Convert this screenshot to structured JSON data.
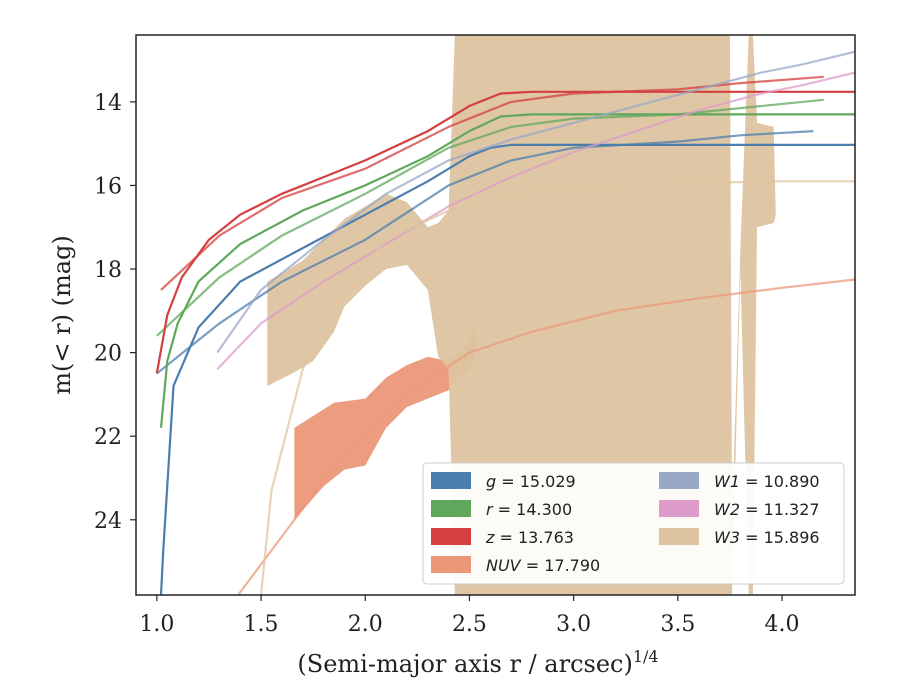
{
  "chart_data": {
    "type": "line",
    "xlabel": "(Semi-major axis r / arcsec)",
    "xlabel_superscript": "1/4",
    "ylabel": "m(< r) (mag)",
    "xlim": [
      0.9,
      4.35
    ],
    "ylim": [
      25.8,
      12.4
    ],
    "y_inverted": true,
    "x_ticks": [
      1.0,
      1.5,
      2.0,
      2.5,
      3.0,
      3.5,
      4.0
    ],
    "x_tick_labels": [
      "1.0",
      "1.5",
      "2.0",
      "2.5",
      "3.0",
      "3.5",
      "4.0"
    ],
    "y_ticks": [
      14,
      16,
      18,
      20,
      22,
      24
    ],
    "y_tick_labels": [
      "14",
      "16",
      "18",
      "20",
      "22",
      "24"
    ],
    "legend_position": "lower-right",
    "legend": [
      {
        "label": "g = 15.029",
        "color": "#4c7ead"
      },
      {
        "label": "r = 14.300",
        "color": "#5fa85b"
      },
      {
        "label": "z = 13.763",
        "color": "#d43f3f"
      },
      {
        "label": "NUV = 17.790",
        "color": "#eb9878"
      },
      {
        "label": "W1 = 10.890",
        "color": "#9aa8c8"
      },
      {
        "label": "W2 = 11.327",
        "color": "#de9ccb"
      },
      {
        "label": "W3 = 15.896",
        "color": "#ddc4a0"
      }
    ],
    "series": [
      {
        "name": "g = 15.029",
        "color": "#4c7ead",
        "data": [
          [
            1.02,
            25.8
          ],
          [
            1.03,
            24.8
          ],
          [
            1.08,
            20.8
          ],
          [
            1.2,
            19.4
          ],
          [
            1.4,
            18.3
          ],
          [
            1.7,
            17.5
          ],
          [
            2.0,
            16.7
          ],
          [
            2.3,
            15.9
          ],
          [
            2.5,
            15.3
          ],
          [
            2.6,
            15.1
          ],
          [
            2.7,
            15.03
          ],
          [
            3.0,
            15.03
          ],
          [
            4.35,
            15.03
          ]
        ],
        "model": [
          [
            1.0,
            20.5
          ],
          [
            1.3,
            19.3
          ],
          [
            1.6,
            18.3
          ],
          [
            2.0,
            17.3
          ],
          [
            2.4,
            16.0
          ],
          [
            2.7,
            15.4
          ],
          [
            3.0,
            15.1
          ],
          [
            3.5,
            14.95
          ],
          [
            3.8,
            14.8
          ],
          [
            4.15,
            14.7
          ]
        ]
      },
      {
        "name": "r = 14.300",
        "color": "#5fa85b",
        "data": [
          [
            1.02,
            21.8
          ],
          [
            1.05,
            20.2
          ],
          [
            1.1,
            19.3
          ],
          [
            1.2,
            18.3
          ],
          [
            1.4,
            17.4
          ],
          [
            1.7,
            16.6
          ],
          [
            2.0,
            16.0
          ],
          [
            2.3,
            15.3
          ],
          [
            2.5,
            14.7
          ],
          [
            2.65,
            14.35
          ],
          [
            2.8,
            14.3
          ],
          [
            4.35,
            14.3
          ]
        ],
        "model": [
          [
            1.0,
            19.6
          ],
          [
            1.3,
            18.2
          ],
          [
            1.6,
            17.2
          ],
          [
            2.0,
            16.2
          ],
          [
            2.4,
            15.1
          ],
          [
            2.7,
            14.6
          ],
          [
            3.0,
            14.4
          ],
          [
            3.5,
            14.3
          ],
          [
            3.8,
            14.15
          ],
          [
            4.2,
            13.95
          ]
        ]
      },
      {
        "name": "z = 13.763",
        "color": "#d43f3f",
        "data": [
          [
            1.0,
            20.5
          ],
          [
            1.05,
            19.1
          ],
          [
            1.12,
            18.2
          ],
          [
            1.25,
            17.3
          ],
          [
            1.4,
            16.7
          ],
          [
            1.6,
            16.2
          ],
          [
            1.8,
            15.8
          ],
          [
            2.0,
            15.4
          ],
          [
            2.3,
            14.7
          ],
          [
            2.5,
            14.1
          ],
          [
            2.65,
            13.8
          ],
          [
            2.8,
            13.76
          ],
          [
            4.35,
            13.76
          ]
        ],
        "model": [
          [
            1.02,
            18.5
          ],
          [
            1.3,
            17.2
          ],
          [
            1.6,
            16.3
          ],
          [
            2.0,
            15.6
          ],
          [
            2.4,
            14.6
          ],
          [
            2.7,
            14.0
          ],
          [
            3.0,
            13.8
          ],
          [
            3.5,
            13.7
          ],
          [
            3.8,
            13.55
          ],
          [
            4.2,
            13.4
          ]
        ]
      },
      {
        "name": "NUV = 17.790",
        "color": "#eb9878",
        "model": [
          [
            1.39,
            25.8
          ],
          [
            1.6,
            24.4
          ],
          [
            1.9,
            22.4
          ],
          [
            2.2,
            21.0
          ],
          [
            2.5,
            20.0
          ],
          [
            2.8,
            19.5
          ],
          [
            3.2,
            19.0
          ],
          [
            3.6,
            18.7
          ],
          [
            4.0,
            18.45
          ],
          [
            4.35,
            18.25
          ]
        ],
        "band_upper": [
          [
            1.66,
            21.8
          ],
          [
            1.85,
            21.2
          ],
          [
            2.0,
            21.1
          ],
          [
            2.1,
            20.6
          ],
          [
            2.2,
            20.3
          ],
          [
            2.3,
            20.1
          ],
          [
            2.4,
            20.2
          ],
          [
            2.45,
            20.0
          ],
          [
            2.5,
            19.7
          ],
          [
            2.53,
            19.4
          ]
        ],
        "band_lower": [
          [
            1.66,
            24.0
          ],
          [
            1.8,
            23.2
          ],
          [
            1.9,
            22.8
          ],
          [
            2.0,
            22.7
          ],
          [
            2.1,
            21.8
          ],
          [
            2.2,
            21.3
          ],
          [
            2.3,
            21.1
          ],
          [
            2.4,
            20.9
          ],
          [
            2.45,
            20.6
          ],
          [
            2.5,
            20.4
          ],
          [
            2.53,
            20.1
          ]
        ]
      },
      {
        "name": "W1 = 10.890",
        "color": "#9aa8c8",
        "model": [
          [
            1.29,
            20.0
          ],
          [
            1.5,
            18.5
          ],
          [
            1.8,
            17.3
          ],
          [
            2.1,
            16.2
          ],
          [
            2.4,
            15.4
          ],
          [
            2.7,
            14.9
          ],
          [
            3.0,
            14.5
          ],
          [
            3.3,
            14.1
          ],
          [
            3.6,
            13.7
          ],
          [
            3.9,
            13.3
          ],
          [
            4.1,
            13.1
          ],
          [
            4.35,
            12.8
          ]
        ]
      },
      {
        "name": "W2 = 11.327",
        "color": "#de9ccb",
        "model": [
          [
            1.29,
            20.4
          ],
          [
            1.5,
            19.3
          ],
          [
            1.8,
            18.3
          ],
          [
            2.1,
            17.4
          ],
          [
            2.4,
            16.5
          ],
          [
            2.7,
            15.8
          ],
          [
            3.0,
            15.2
          ],
          [
            3.3,
            14.7
          ],
          [
            3.6,
            14.2
          ],
          [
            3.9,
            13.8
          ],
          [
            4.1,
            13.6
          ],
          [
            4.35,
            13.3
          ]
        ]
      },
      {
        "name": "W3 = 15.896",
        "color": "#ddc4a0",
        "model": [
          [
            1.5,
            25.8
          ],
          [
            1.55,
            23.3
          ],
          [
            1.7,
            20.4
          ],
          [
            1.9,
            18.4
          ],
          [
            2.1,
            17.3
          ],
          [
            2.4,
            16.6
          ],
          [
            2.7,
            16.2
          ],
          [
            3.0,
            16.0
          ],
          [
            3.5,
            15.95
          ],
          [
            4.0,
            15.9
          ],
          [
            4.35,
            15.9
          ]
        ],
        "band_upper": [
          [
            1.53,
            18.3
          ],
          [
            1.7,
            17.8
          ],
          [
            1.8,
            17.3
          ],
          [
            1.9,
            16.8
          ],
          [
            2.0,
            16.5
          ],
          [
            2.1,
            16.2
          ],
          [
            2.2,
            16.4
          ],
          [
            2.3,
            17.0
          ],
          [
            2.35,
            16.9
          ],
          [
            2.4,
            16.6
          ],
          [
            2.43,
            12.4
          ],
          [
            2.6,
            12.4
          ],
          [
            3.75,
            12.4
          ],
          [
            3.76,
            24.0
          ],
          [
            3.8,
            17.5
          ],
          [
            3.84,
            12.4
          ],
          [
            3.86,
            12.4
          ],
          [
            3.88,
            14.5
          ],
          [
            3.96,
            14.6
          ],
          [
            3.97,
            16.7
          ]
        ],
        "band_lower": [
          [
            1.53,
            20.8
          ],
          [
            1.65,
            20.5
          ],
          [
            1.75,
            20.2
          ],
          [
            1.85,
            19.5
          ],
          [
            1.9,
            18.9
          ],
          [
            2.0,
            18.4
          ],
          [
            2.1,
            18.0
          ],
          [
            2.2,
            17.9
          ],
          [
            2.3,
            18.5
          ],
          [
            2.35,
            20.1
          ],
          [
            2.4,
            20.4
          ],
          [
            2.43,
            25.8
          ],
          [
            2.6,
            25.8
          ],
          [
            3.75,
            25.8
          ],
          [
            3.76,
            25.8
          ],
          [
            3.8,
            18.0
          ],
          [
            3.84,
            25.8
          ],
          [
            3.86,
            25.8
          ],
          [
            3.88,
            17.0
          ],
          [
            3.96,
            16.9
          ],
          [
            3.97,
            16.7
          ]
        ]
      }
    ]
  }
}
